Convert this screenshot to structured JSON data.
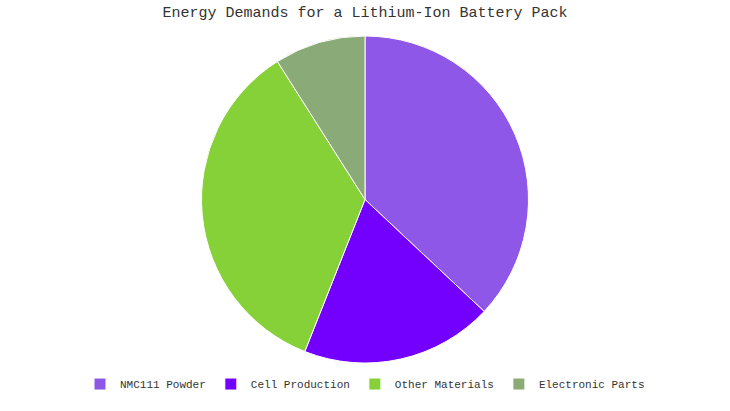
{
  "chart_data": {
    "type": "pie",
    "title": "Energy Demands for a Lithium-Ion Battery Pack",
    "categories": [
      "NMC111 Powder",
      "Cell Production",
      "Other Materials",
      "Electronic Parts"
    ],
    "values": [
      37,
      19,
      35,
      9
    ],
    "colors": [
      "#8f57e8",
      "#7300ff",
      "#86d138",
      "#8aab78"
    ],
    "legend": "bottom",
    "data_labels": false
  }
}
